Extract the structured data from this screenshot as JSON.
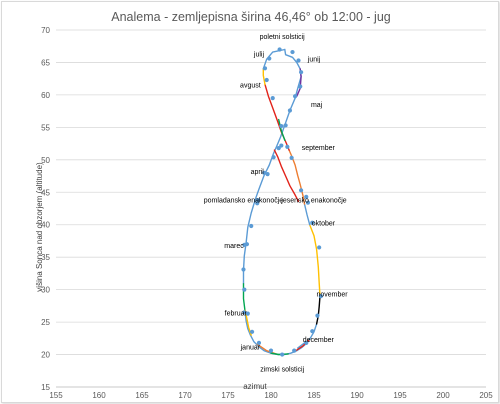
{
  "chart_data": {
    "type": "scatter",
    "title": "Analema - zemljepisna širina 46,46° ob 12:00 - jug",
    "xlabel": "azimut",
    "ylabel": "višina Sonca nad obzorjem (altitude)",
    "xlim": [
      155,
      205
    ],
    "ylim": [
      15,
      70
    ],
    "xticks": [
      155,
      160,
      165,
      170,
      175,
      180,
      185,
      190,
      195,
      200,
      205
    ],
    "yticks": [
      15,
      20,
      25,
      30,
      35,
      40,
      45,
      50,
      55,
      60,
      65,
      70
    ],
    "grid": "horizontal",
    "colors": {
      "line_blue": "#5b9bd5",
      "marker": "#5b9bd5",
      "red": "#e2231a",
      "orange": "#ed7d31",
      "yellow": "#ffc000",
      "green": "#00a651",
      "purple": "#7030a0",
      "black": "#000000"
    },
    "series": [
      {
        "color": "blue",
        "points": [
          [
            181.6,
            67.0
          ],
          [
            181.7,
            66.2
          ],
          [
            182.5,
            65.8
          ],
          [
            183.0,
            65.0
          ],
          [
            183.4,
            64.0
          ],
          [
            183.5,
            62.8
          ],
          [
            183.1,
            61.0
          ],
          [
            182.8,
            59.5
          ],
          [
            182.2,
            57.6
          ],
          [
            181.7,
            55.7
          ],
          [
            181.1,
            53.5
          ],
          [
            180.7,
            52.2
          ],
          [
            180.3,
            51.0
          ],
          [
            179.8,
            49.2
          ],
          [
            179.2,
            47.6
          ],
          [
            178.6,
            45.5
          ],
          [
            178.2,
            44.0
          ],
          [
            177.7,
            41.8
          ],
          [
            177.3,
            39.6
          ],
          [
            177.1,
            37.2
          ],
          [
            176.9,
            35.2
          ],
          [
            176.8,
            33.0
          ],
          [
            176.8,
            30.9
          ]
        ]
      },
      {
        "color": "green",
        "points": [
          [
            176.8,
            30.9
          ],
          [
            176.8,
            28.6
          ],
          [
            177.0,
            26.5
          ]
        ]
      },
      {
        "color": "blue",
        "points": [
          [
            177.0,
            26.5
          ],
          [
            177.1,
            25.2
          ],
          [
            177.3,
            24.0
          ],
          [
            177.6,
            23.0
          ],
          [
            178.0,
            22.0
          ],
          [
            178.6,
            21.2
          ],
          [
            179.2,
            20.6
          ],
          [
            180.0,
            20.2
          ],
          [
            180.8,
            20.0
          ],
          [
            181.6,
            20.0
          ],
          [
            182.3,
            20.2
          ],
          [
            183.0,
            20.6
          ],
          [
            183.6,
            21.1
          ],
          [
            184.2,
            21.8
          ],
          [
            184.6,
            22.6
          ],
          [
            185.0,
            23.5
          ],
          [
            185.3,
            24.7
          ]
        ]
      },
      {
        "color": "black",
        "points": [
          [
            185.3,
            24.7
          ],
          [
            185.5,
            26.0
          ],
          [
            185.6,
            27.4
          ],
          [
            185.7,
            29.0
          ]
        ]
      },
      {
        "color": "yellow",
        "points": [
          [
            185.7,
            29.0
          ],
          [
            185.6,
            31.0
          ],
          [
            185.5,
            33.5
          ],
          [
            185.3,
            36.2
          ],
          [
            185.0,
            38.3
          ],
          [
            184.5,
            40.0
          ]
        ]
      },
      {
        "color": "blue",
        "points": [
          [
            184.5,
            40.0
          ],
          [
            184.2,
            41.5
          ],
          [
            183.9,
            43.2
          ]
        ]
      },
      {
        "color": "orange",
        "points": [
          [
            183.9,
            43.2
          ],
          [
            183.7,
            44.6
          ],
          [
            183.4,
            46.2
          ],
          [
            183.1,
            47.6
          ],
          [
            182.8,
            49.2
          ],
          [
            182.4,
            50.6
          ],
          [
            182.1,
            51.5
          ]
        ]
      },
      {
        "color": "red",
        "points": [
          [
            182.1,
            51.5
          ],
          [
            181.8,
            52.5
          ],
          [
            181.2,
            54.3
          ],
          [
            180.7,
            56.2
          ],
          [
            180.2,
            58.0
          ],
          [
            179.7,
            59.8
          ],
          [
            179.3,
            61.6
          ]
        ]
      },
      {
        "color": "yellow",
        "points": [
          [
            179.3,
            61.6
          ],
          [
            179.1,
            63.0
          ],
          [
            179.1,
            64.0
          ]
        ]
      },
      {
        "color": "blue",
        "points": [
          [
            179.1,
            64.0
          ],
          [
            179.5,
            65.5
          ],
          [
            180.2,
            66.6
          ],
          [
            181.6,
            67.0
          ]
        ]
      },
      {
        "color": "purple",
        "points": [
          [
            183.4,
            64.0
          ],
          [
            183.5,
            62.8
          ],
          [
            183.4,
            61.0
          ],
          [
            183.0,
            59.8
          ]
        ]
      },
      {
        "color": "red",
        "points": [
          [
            180.4,
            51.5
          ],
          [
            180.8,
            50.4
          ],
          [
            181.2,
            49.0
          ],
          [
            181.7,
            47.5
          ],
          [
            182.2,
            46.0
          ],
          [
            182.8,
            44.6
          ],
          [
            183.2,
            43.6
          ]
        ]
      },
      {
        "color": "green",
        "points": [
          [
            180.9,
            56.2
          ],
          [
            181.2,
            54.5
          ],
          [
            181.6,
            53.0
          ]
        ]
      },
      {
        "color": "orange",
        "points": [
          [
            178.4,
            21.6
          ],
          [
            179.5,
            20.6
          ],
          [
            180.8,
            20.0
          ]
        ]
      },
      {
        "color": "yellow",
        "points": [
          [
            177.7,
            23.0
          ],
          [
            177.4,
            24.2
          ],
          [
            177.2,
            25.5
          ],
          [
            177.0,
            26.8
          ]
        ]
      },
      {
        "color": "blue",
        "points": [
          [
            183.1,
            21.0
          ],
          [
            183.6,
            21.5
          ],
          [
            184.1,
            22.0
          ]
        ]
      },
      {
        "color": "green",
        "points": [
          [
            180.0,
            20.2
          ],
          [
            180.9,
            20.0
          ],
          [
            182.0,
            20.1
          ]
        ]
      },
      {
        "color": "red",
        "points": [
          [
            182.9,
            20.6
          ],
          [
            183.7,
            21.3
          ],
          [
            184.4,
            22.2
          ]
        ]
      }
    ],
    "markers": [
      [
        181.0,
        67.0
      ],
      [
        182.5,
        66.6
      ],
      [
        183.2,
        65.3
      ],
      [
        183.5,
        63.5
      ],
      [
        183.4,
        61.3
      ],
      [
        182.8,
        59.8
      ],
      [
        182.2,
        57.6
      ],
      [
        181.7,
        55.3
      ],
      [
        181.2,
        52.2
      ],
      [
        180.9,
        51.8
      ],
      [
        180.3,
        50.4
      ],
      [
        179.6,
        47.8
      ],
      [
        179.2,
        48.0
      ],
      [
        178.5,
        43.8
      ],
      [
        178.4,
        43.3
      ],
      [
        177.7,
        39.8
      ],
      [
        177.2,
        37.0
      ],
      [
        176.9,
        36.9
      ],
      [
        176.8,
        33.1
      ],
      [
        176.9,
        30.0
      ],
      [
        176.9,
        26.5
      ],
      [
        177.3,
        26.3
      ],
      [
        177.8,
        23.5
      ],
      [
        178.6,
        21.8
      ],
      [
        180.0,
        20.6
      ],
      [
        181.3,
        20.0
      ],
      [
        182.7,
        20.6
      ],
      [
        184.1,
        21.8
      ],
      [
        184.8,
        23.6
      ],
      [
        185.4,
        26.0
      ],
      [
        185.8,
        29.0
      ],
      [
        185.6,
        36.5
      ],
      [
        184.8,
        40.3
      ],
      [
        184.3,
        43.4
      ],
      [
        184.1,
        44.3
      ],
      [
        183.5,
        45.3
      ],
      [
        182.4,
        50.3
      ],
      [
        181.9,
        52.0
      ],
      [
        181.2,
        55.2
      ],
      [
        180.2,
        59.5
      ],
      [
        179.5,
        62.3
      ],
      [
        179.3,
        64.1
      ],
      [
        179.8,
        65.6
      ]
    ],
    "annotations": [
      {
        "text": "poletni solsticij",
        "x": 181.3,
        "y": 69.0
      },
      {
        "text": "julij",
        "x": 178.6,
        "y": 66.3
      },
      {
        "text": "junij",
        "x": 185.0,
        "y": 65.5
      },
      {
        "text": "avgust",
        "x": 177.6,
        "y": 61.5
      },
      {
        "text": "maj",
        "x": 185.3,
        "y": 58.5
      },
      {
        "text": "september",
        "x": 185.5,
        "y": 51.9
      },
      {
        "text": "april",
        "x": 178.4,
        "y": 48.2
      },
      {
        "text": "jesensko enakonočje",
        "x": 185.0,
        "y": 43.8
      },
      {
        "text": "pomladansko enakonočje",
        "x": 176.8,
        "y": 43.8
      },
      {
        "text": "oktober",
        "x": 186.1,
        "y": 40.3
      },
      {
        "text": "marec",
        "x": 175.7,
        "y": 36.8
      },
      {
        "text": "november",
        "x": 187.1,
        "y": 29.3
      },
      {
        "text": "februar",
        "x": 175.9,
        "y": 26.4
      },
      {
        "text": "december",
        "x": 185.5,
        "y": 22.3
      },
      {
        "text": "januar",
        "x": 177.6,
        "y": 21.2
      },
      {
        "text": "zimski solsticij",
        "x": 181.3,
        "y": 17.8
      }
    ]
  }
}
